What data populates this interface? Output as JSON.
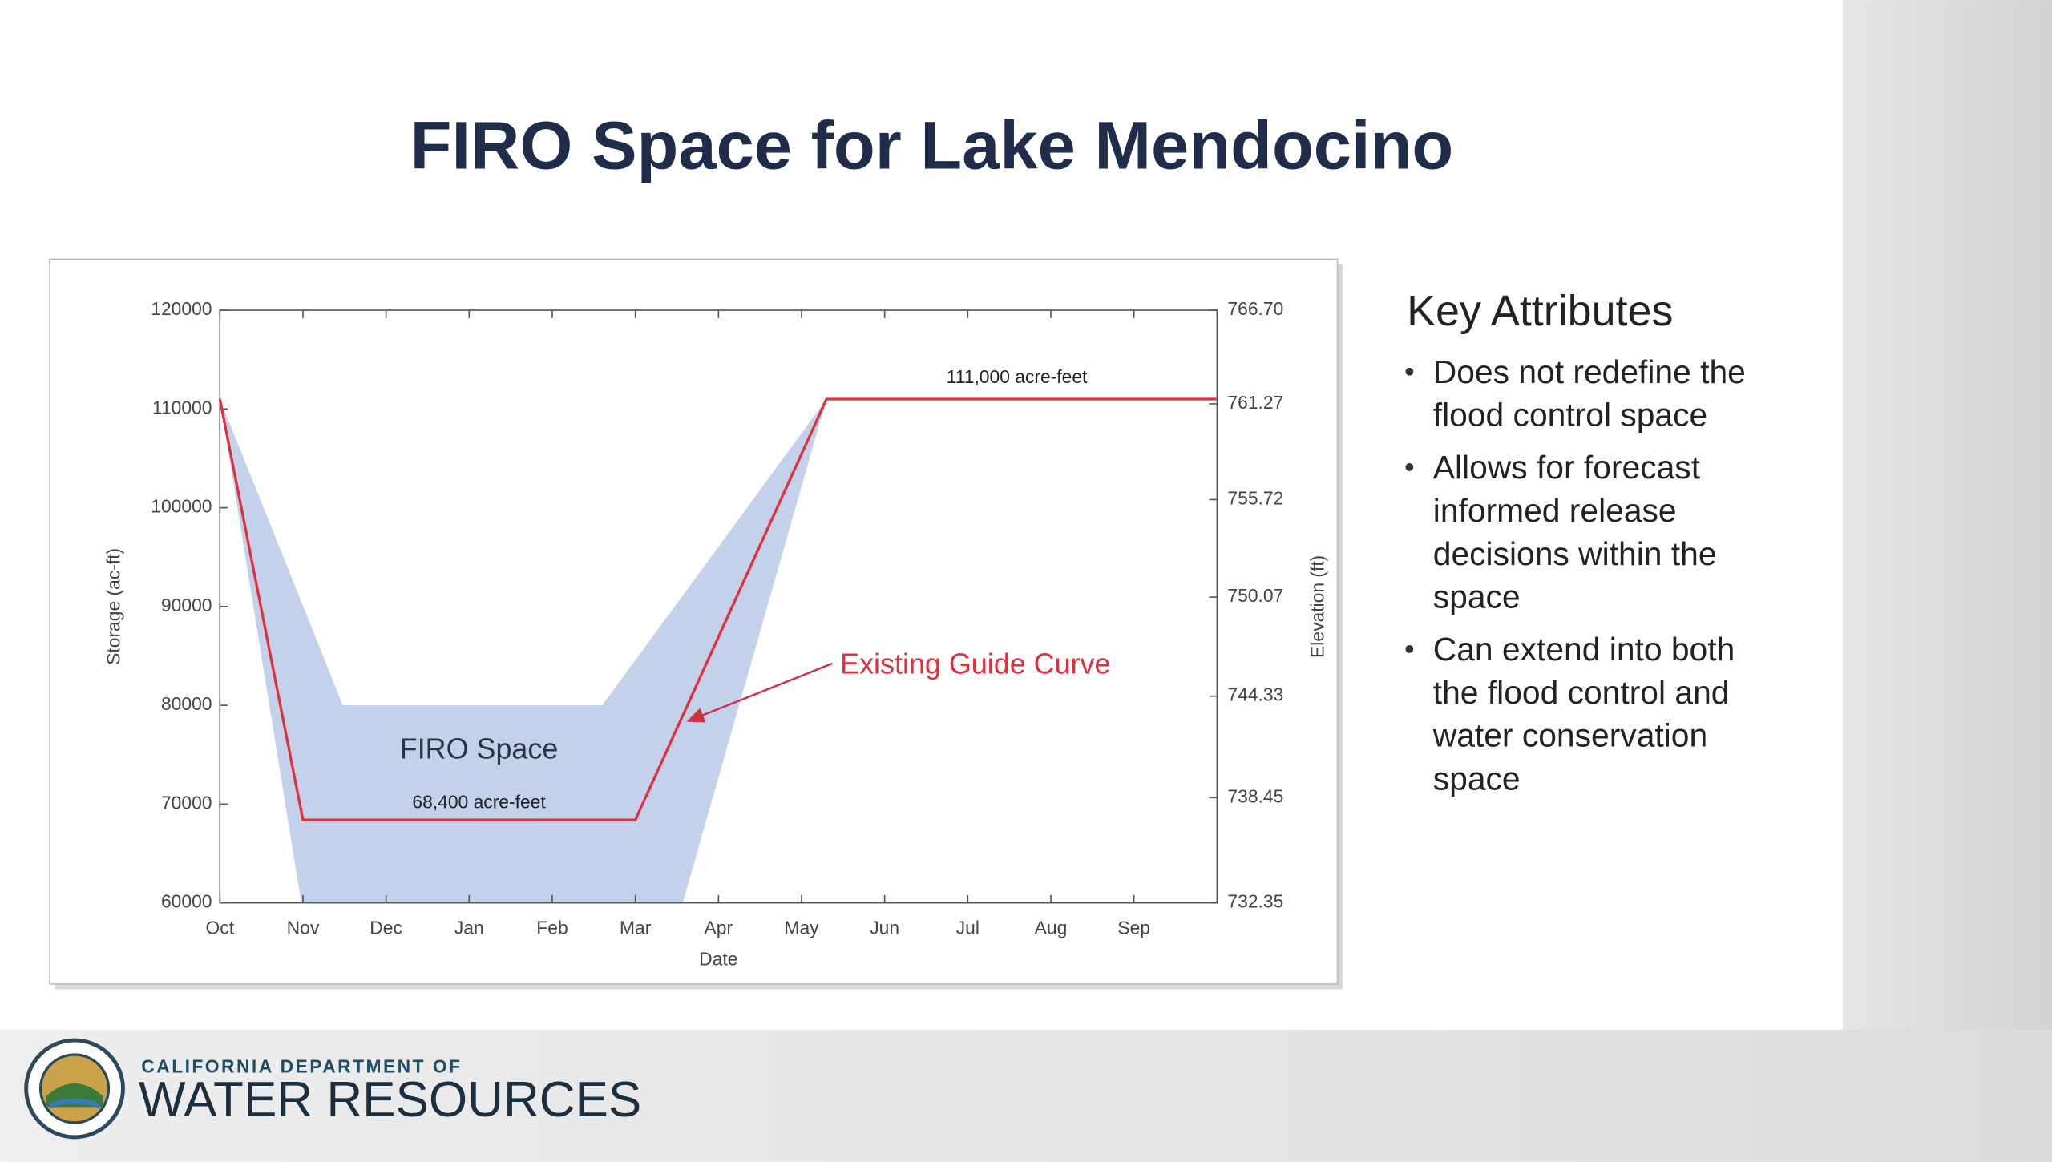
{
  "title": "FIRO Space for Lake Mendocino",
  "chart_data": {
    "type": "line",
    "xlabel": "Date",
    "ylabel": "Storage (ac-ft)",
    "y2label": "Elevation (ft)",
    "xlim": [
      0,
      12
    ],
    "xticks": [
      {
        "value": 0,
        "label": "Oct"
      },
      {
        "value": 1,
        "label": "Nov"
      },
      {
        "value": 2,
        "label": "Dec"
      },
      {
        "value": 3,
        "label": "Jan"
      },
      {
        "value": 4,
        "label": "Feb"
      },
      {
        "value": 5,
        "label": "Mar"
      },
      {
        "value": 6,
        "label": "Apr"
      },
      {
        "value": 7,
        "label": "May"
      },
      {
        "value": 8,
        "label": "Jun"
      },
      {
        "value": 9,
        "label": "Jul"
      },
      {
        "value": 10,
        "label": "Aug"
      },
      {
        "value": 11,
        "label": "Sep"
      }
    ],
    "ylim": [
      60000,
      120000
    ],
    "yticks": [
      60000,
      70000,
      80000,
      90000,
      100000,
      110000,
      120000
    ],
    "y2lim": [
      732.35,
      766.7
    ],
    "y2ticks": [
      732.35,
      738.45,
      744.33,
      750.07,
      755.72,
      761.27,
      {
        "value": 766.7,
        "label": "766.70"
      }
    ],
    "series": [
      {
        "name": "Existing Guide Curve",
        "color": "#e0303c",
        "x": [
          0,
          1,
          5,
          7.3,
          12
        ],
        "values": [
          111000,
          68400,
          68400,
          111000,
          111000
        ]
      }
    ],
    "band": {
      "name": "FIRO Space",
      "color": "#b4c5e6",
      "x": [
        0,
        0.98,
        1.48,
        4.6,
        5.57,
        7.3
      ],
      "upper": [
        111000,
        90500,
        80000,
        80000,
        91100,
        111000
      ],
      "lower": [
        111000,
        60000,
        60000,
        60000,
        60000,
        111000
      ]
    },
    "annotations": [
      "111,000 acre-feet",
      "68,400 acre-feet"
    ]
  },
  "key_attributes": {
    "heading": "Key Attributes",
    "bullets": [
      [
        "Does not redefine the",
        "flood control space"
      ],
      [
        "Allows for forecast",
        "informed release",
        "decisions within the",
        "space"
      ],
      [
        "Can extend into both",
        "the flood control and",
        "water conservation",
        "space"
      ]
    ]
  },
  "footer": {
    "line1": "CALIFORNIA DEPARTMENT OF",
    "line2": "WATER RESOURCES"
  }
}
